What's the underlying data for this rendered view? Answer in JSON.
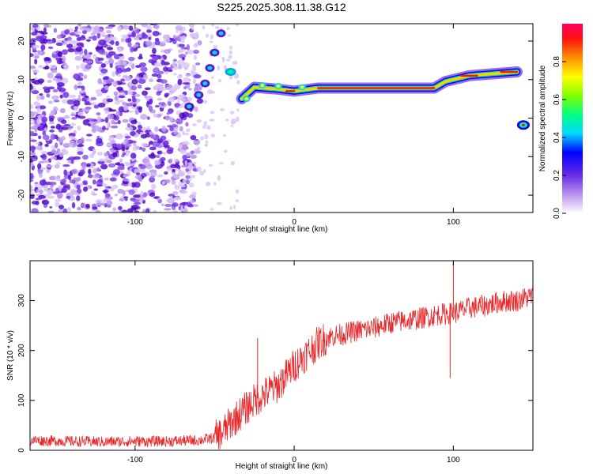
{
  "title": "S225.2025.308.11.38.G12",
  "chart_data": [
    {
      "type": "heatmap",
      "name": "spectrogram",
      "xlabel": "Height of straight line (km)",
      "ylabel": "Frequency (Hz)",
      "xlim": [
        -166,
        150
      ],
      "ylim": [
        -24.5,
        24.5
      ],
      "xticks": [
        -100,
        0,
        100
      ],
      "xtick_labels": [
        "-100",
        "0",
        "100"
      ],
      "yticks": [
        -20,
        -10,
        0,
        10,
        20
      ],
      "ytick_labels": [
        "-20",
        "-10",
        "0",
        "10",
        "20"
      ],
      "colorbar": {
        "label": "Normalized spectral amplitude",
        "range": [
          0,
          1
        ],
        "ticks": [
          0.0,
          0.2,
          0.4,
          0.6,
          0.8
        ],
        "tick_labels": [
          "0.0",
          "0.2",
          "0.4",
          "0.6",
          "0.8"
        ]
      },
      "ridge": {
        "description_points": [
          {
            "x": -33,
            "y": 5
          },
          {
            "x": -25,
            "y": 8
          },
          {
            "x": -10,
            "y": 7.5
          },
          {
            "x": 0,
            "y": 7
          },
          {
            "x": 15,
            "y": 7.8
          },
          {
            "x": 50,
            "y": 7.8
          },
          {
            "x": 88,
            "y": 7.8
          },
          {
            "x": 95,
            "y": 9.5
          },
          {
            "x": 110,
            "y": 11
          },
          {
            "x": 140,
            "y": 12
          }
        ],
        "isolated_peak": {
          "x": 144,
          "y": -1.8
        }
      }
    },
    {
      "type": "line",
      "name": "snr",
      "xlabel": "Height of straight line (km)",
      "ylabel": "SNR (10 * v/v)",
      "xlim": [
        -166,
        150
      ],
      "ylim": [
        0,
        380
      ],
      "xticks": [
        -100,
        0,
        100
      ],
      "xtick_labels": [
        "-100",
        "0",
        "100"
      ],
      "yticks": [
        0,
        100,
        200,
        300
      ],
      "ytick_labels": [
        "0",
        "100",
        "200",
        "300"
      ],
      "color": "#e8282a",
      "series": [
        {
          "name": "SNR",
          "x": [
            -166,
            -140,
            -120,
            -100,
            -80,
            -60,
            -50,
            -45,
            -40,
            -35,
            -30,
            -25,
            -20,
            -15,
            -10,
            -5,
            0,
            5,
            10,
            15,
            20,
            25,
            30,
            40,
            50,
            60,
            70,
            80,
            90,
            100,
            110,
            120,
            130,
            140,
            150
          ],
          "values": [
            20,
            18,
            17,
            18,
            18,
            20,
            25,
            35,
            55,
            70,
            85,
            100,
            110,
            120,
            130,
            150,
            170,
            185,
            200,
            215,
            225,
            230,
            232,
            240,
            245,
            255,
            260,
            265,
            272,
            275,
            285,
            290,
            298,
            300,
            310
          ]
        }
      ],
      "annotations": [
        {
          "x": -23,
          "y": 225,
          "label": "spike"
        },
        {
          "x": 100,
          "y": 380,
          "label": "spike"
        },
        {
          "x": 98,
          "y": 145,
          "label": "dip"
        }
      ]
    }
  ]
}
